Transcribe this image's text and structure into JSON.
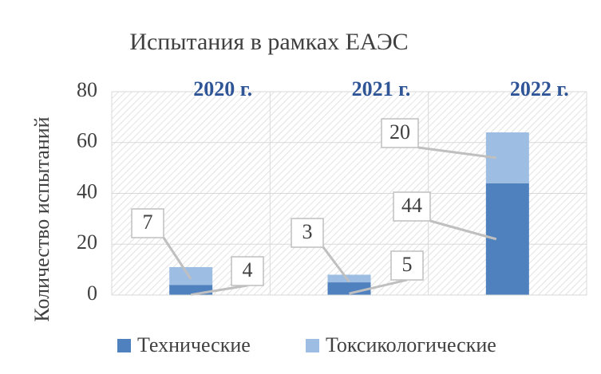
{
  "chart_data": {
    "type": "stacked_bar",
    "title": "Испытания в рамках ЕАЭС",
    "y_label": "Количество испытаний",
    "categories": [
      "2020 г.",
      "2021 г.",
      "2022 г."
    ],
    "series": [
      {
        "name": "Технические",
        "color": "#4e81bd",
        "values": [
          4,
          5,
          44
        ]
      },
      {
        "name": "Токсикологические",
        "color": "#9dbde3",
        "values": [
          7,
          3,
          20
        ]
      }
    ],
    "ylim": [
      0,
      80
    ],
    "yticks": [
      0,
      20,
      40,
      60,
      80
    ],
    "grid": true,
    "legend": "bottom"
  }
}
